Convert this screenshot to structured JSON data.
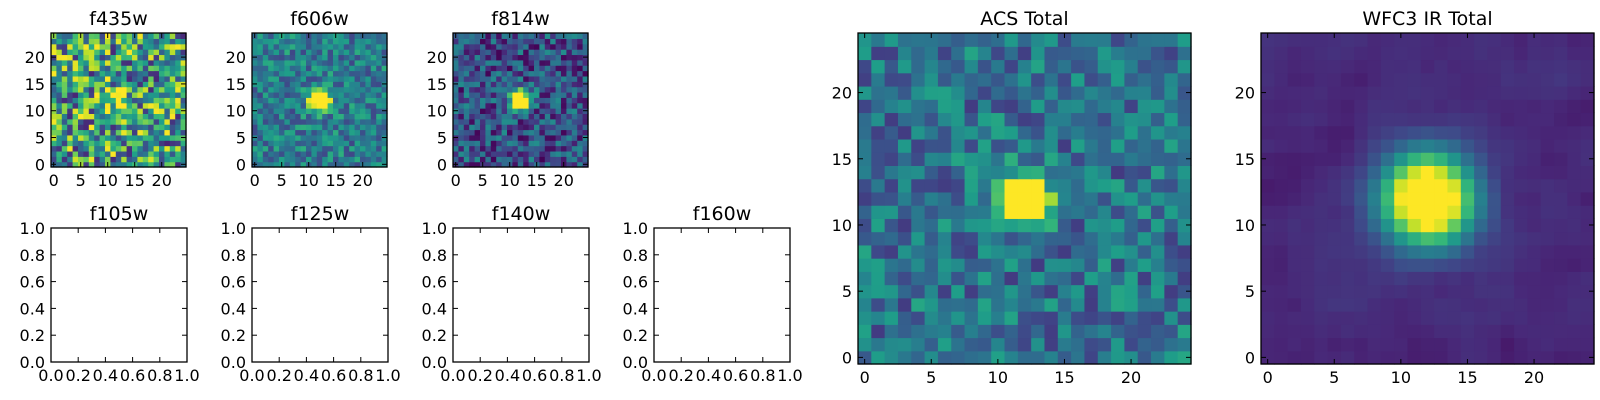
{
  "chart_data": [
    {
      "type": "heatmap",
      "title": "f435w",
      "field": "noise",
      "seed": 11,
      "xlim": [
        -0.5,
        24.5
      ],
      "ylim": [
        -0.5,
        24.5
      ],
      "xticks": [
        "0",
        "5",
        "10",
        "15",
        "20"
      ],
      "yticks": [
        "0",
        "5",
        "10",
        "15",
        "20"
      ],
      "source": {
        "x": 12,
        "y": 12,
        "peak": 0.1
      },
      "noise_level": 0.55,
      "background": 0.42,
      "colormap": "viridis"
    },
    {
      "type": "heatmap",
      "title": "f606w",
      "field": "noise",
      "seed": 23,
      "xlim": [
        -0.5,
        24.5
      ],
      "ylim": [
        -0.5,
        24.5
      ],
      "xticks": [
        "0",
        "5",
        "10",
        "15",
        "20"
      ],
      "yticks": [
        "0",
        "5",
        "10",
        "15",
        "20"
      ],
      "source": {
        "x": 12,
        "y": 12,
        "peak": 1.0
      },
      "noise_level": 0.3,
      "background": 0.42,
      "colormap": "viridis"
    },
    {
      "type": "heatmap",
      "title": "f814w",
      "field": "noise",
      "seed": 37,
      "xlim": [
        -0.5,
        24.5
      ],
      "ylim": [
        -0.5,
        24.5
      ],
      "xticks": [
        "0",
        "5",
        "10",
        "15",
        "20"
      ],
      "yticks": [
        "0",
        "5",
        "10",
        "15",
        "20"
      ],
      "source": {
        "x": 12,
        "y": 12,
        "peak": 1.0
      },
      "noise_level": 0.35,
      "background": 0.25,
      "colormap": "viridis"
    },
    {
      "type": "empty",
      "title": "f105w",
      "xlim": [
        0,
        1
      ],
      "ylim": [
        0,
        1
      ],
      "xticks": [
        "0.0",
        "0.2",
        "0.4",
        "0.6",
        "0.8",
        "1.0"
      ],
      "yticks": [
        "0.0",
        "0.2",
        "0.4",
        "0.6",
        "0.8",
        "1.0"
      ]
    },
    {
      "type": "empty",
      "title": "f125w",
      "xlim": [
        0,
        1
      ],
      "ylim": [
        0,
        1
      ],
      "xticks": [
        "0.0",
        "0.2",
        "0.4",
        "0.6",
        "0.8",
        "1.0"
      ],
      "yticks": [
        "0.0",
        "0.2",
        "0.4",
        "0.6",
        "0.8",
        "1.0"
      ]
    },
    {
      "type": "empty",
      "title": "f140w",
      "xlim": [
        0,
        1
      ],
      "ylim": [
        0,
        1
      ],
      "xticks": [
        "0.0",
        "0.2",
        "0.4",
        "0.6",
        "0.8",
        "1.0"
      ],
      "yticks": [
        "0.0",
        "0.2",
        "0.4",
        "0.6",
        "0.8",
        "1.0"
      ]
    },
    {
      "type": "empty",
      "title": "f160w",
      "xlim": [
        0,
        1
      ],
      "ylim": [
        0,
        1
      ],
      "xticks": [
        "0.0",
        "0.2",
        "0.4",
        "0.6",
        "0.8",
        "1.0"
      ],
      "yticks": [
        "0.0",
        "0.2",
        "0.4",
        "0.6",
        "0.8",
        "1.0"
      ]
    },
    {
      "type": "heatmap",
      "title": "ACS Total",
      "field": "noise",
      "seed": 51,
      "xlim": [
        -0.5,
        24.5
      ],
      "ylim": [
        -0.5,
        24.5
      ],
      "xticks": [
        "0",
        "5",
        "10",
        "15",
        "20"
      ],
      "yticks": [
        "0",
        "5",
        "10",
        "15",
        "20"
      ],
      "source": {
        "x": 12,
        "y": 12,
        "peak": 1.0
      },
      "noise_level": 0.3,
      "background": 0.38,
      "colormap": "viridis"
    },
    {
      "type": "heatmap",
      "title": "WFC3 IR Total",
      "field": "smooth",
      "seed": 67,
      "xlim": [
        -0.5,
        24.5
      ],
      "ylim": [
        -0.5,
        24.5
      ],
      "xticks": [
        "0",
        "5",
        "10",
        "15",
        "20"
      ],
      "yticks": [
        "0",
        "5",
        "10",
        "15",
        "20"
      ],
      "source": {
        "x": 12,
        "y": 12,
        "peak": 1.0
      },
      "noise_level": 0.1,
      "background": 0.12,
      "colormap": "viridis"
    }
  ]
}
